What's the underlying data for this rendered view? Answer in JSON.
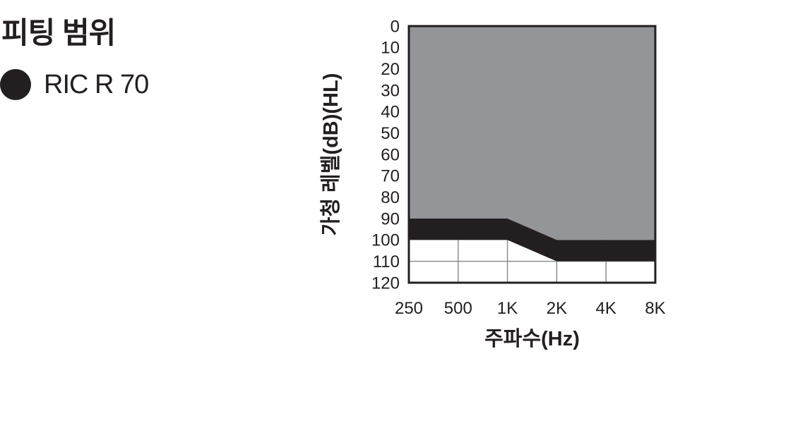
{
  "page": {
    "background": "#ffffff"
  },
  "header": {
    "title": "피팅 범위"
  },
  "legend": {
    "marker": "filled-circle",
    "marker_color": "#231f20",
    "label": "RIC R 70"
  },
  "chart_data": {
    "type": "area",
    "title": "피팅 범위",
    "xlabel": "주파수(Hz)",
    "ylabel": "가청 레벨(dB)(HL)",
    "x_categories": [
      "250",
      "500",
      "1K",
      "2K",
      "4K",
      "8K"
    ],
    "y_ticks": [
      0,
      10,
      20,
      30,
      40,
      50,
      60,
      70,
      80,
      90,
      100,
      110,
      120
    ],
    "ylim": [
      0,
      120
    ],
    "y_axis_direction": "increases downward (hearing level)",
    "grid": "gridlines visible only below the shaded fitting area",
    "vertical_gridlines_at": [
      "500",
      "1K",
      "2K",
      "4K"
    ],
    "horizontal_gridlines_db": [
      110
    ],
    "gridline_color": "#8c8e90",
    "border_color": "#231f20",
    "plot_bg": "#ffffff",
    "series": [
      {
        "name": "fitting range shaded area (gray)",
        "style": "filled-area",
        "color": "#939598",
        "upper_db": [
          0,
          0,
          0,
          0,
          0,
          0
        ],
        "lower_db": [
          90,
          90,
          90,
          100,
          100,
          100
        ]
      },
      {
        "name": "fitting range lower limit band (black)",
        "style": "filled-area",
        "color": "#231f20",
        "upper_db": [
          90,
          90,
          90,
          100,
          100,
          100
        ],
        "lower_db": [
          100,
          100,
          100,
          110,
          110,
          110
        ]
      }
    ]
  }
}
